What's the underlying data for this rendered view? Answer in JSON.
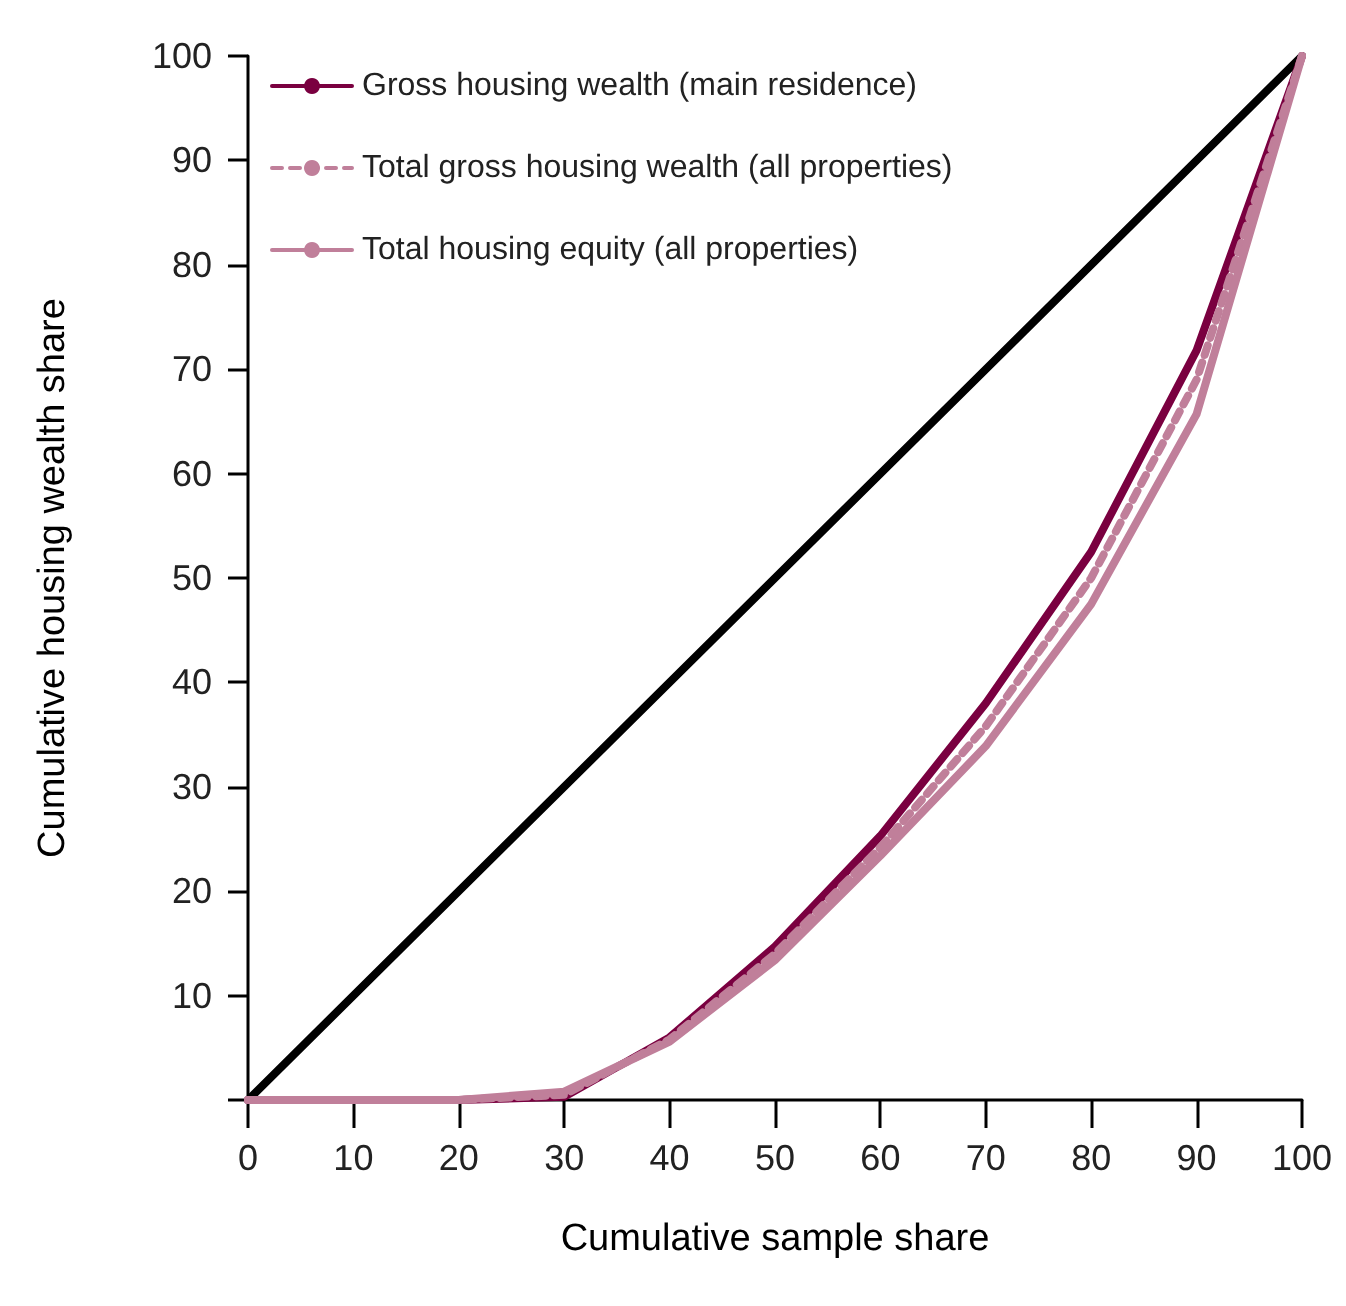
{
  "chart_data": {
    "type": "line",
    "xlabel": "Cumulative sample share",
    "ylabel": "Cumulative housing wealth share",
    "x": [
      0,
      10,
      20,
      30,
      40,
      50,
      60,
      70,
      80,
      90,
      100
    ],
    "series": [
      {
        "color": "#000000",
        "x": [
          0,
          100
        ],
        "values": [
          0,
          100
        ]
      },
      {
        "name": "Gross housing wealth (main residence)",
        "color": "#7a0040",
        "values": [
          0,
          0,
          0,
          0.3,
          6,
          14.7,
          25.3,
          38,
          52.5,
          71.8,
          100
        ]
      },
      {
        "name": "Total gross housing wealth (all properties)",
        "color": "#c07f9a",
        "line_style": "dashed",
        "values": [
          0,
          0,
          0,
          0.5,
          5.8,
          14,
          24.2,
          35.8,
          50,
          69,
          100
        ]
      },
      {
        "name": "Total housing equity (all properties)",
        "color": "#c07f9a",
        "values": [
          0,
          0,
          0,
          0.8,
          5.6,
          13.4,
          23.4,
          33.9,
          47.5,
          65.7,
          100
        ]
      }
    ],
    "xlim": [
      0,
      100
    ],
    "xticks": [
      0,
      10,
      20,
      30,
      40,
      50,
      60,
      70,
      80,
      90,
      100
    ],
    "ylim": [
      0,
      100
    ],
    "yticks": [
      {
        "value": 0,
        "label": null
      },
      10,
      20,
      30,
      40,
      50,
      60,
      70,
      80,
      90,
      100
    ],
    "grid": false,
    "legend": "top left",
    "marker": "none"
  }
}
